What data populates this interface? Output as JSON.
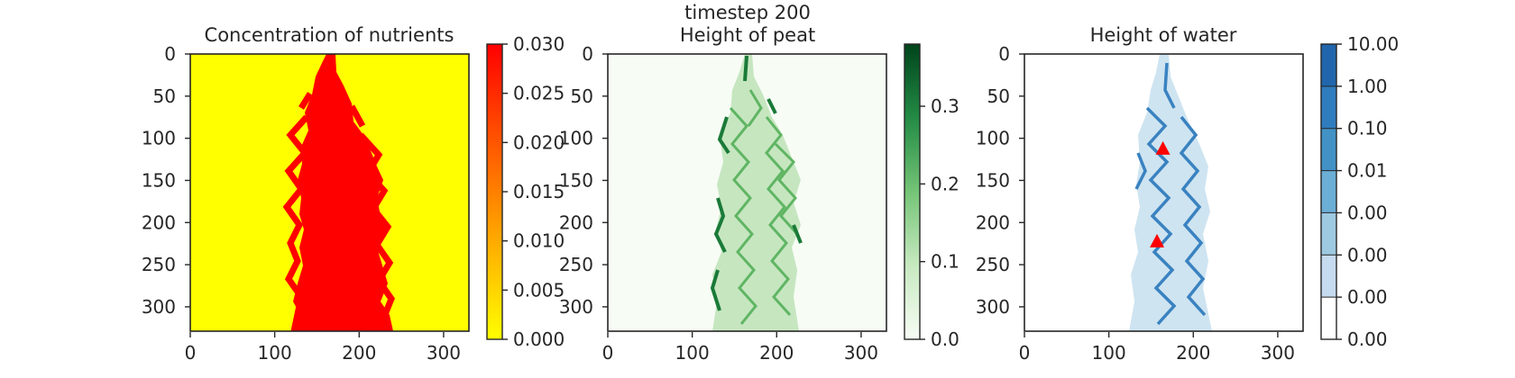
{
  "suptitle": "timestep 200",
  "colors": {
    "axis": "#262626",
    "background": "#ffffff",
    "marker": "#ff0000",
    "nutrient_low": "#ffff00",
    "nutrient_high": "#ff0000"
  },
  "chart_data": [
    {
      "type": "heatmap",
      "title": "Concentration of nutrients",
      "xlabel": "",
      "ylabel": "",
      "xlim": [
        0,
        330
      ],
      "ylim": [
        330,
        0
      ],
      "xticks": [
        "0",
        "100",
        "200",
        "300"
      ],
      "yticks": [
        "0",
        "50",
        "100",
        "150",
        "200",
        "250",
        "300"
      ],
      "colormap": "autumn_r",
      "colorbar": {
        "range": [
          0,
          0.03
        ],
        "ticks": [
          "0.000",
          "0.005",
          "0.010",
          "0.015",
          "0.020",
          "0.025",
          "0.030"
        ]
      },
      "description_values": {
        "background_value": 0,
        "channel_value": 0.03,
        "channel_x_range_at_top": [
          160,
          175
        ],
        "channel_x_range_at_bottom": [
          125,
          235
        ]
      }
    },
    {
      "type": "heatmap",
      "title": "Height of peat",
      "xlabel": "",
      "ylabel": "",
      "xlim": [
        0,
        330
      ],
      "ylim": [
        330,
        0
      ],
      "xticks": [
        "0",
        "100",
        "200",
        "300"
      ],
      "yticks": [
        "0",
        "50",
        "100",
        "150",
        "200",
        "250",
        "300"
      ],
      "colormap": "Greens",
      "colorbar": {
        "range": [
          0,
          0.38
        ],
        "ticks": [
          "0.0",
          "0.1",
          "0.2",
          "0.3"
        ]
      }
    },
    {
      "type": "heatmap",
      "title": "Height of water",
      "xlabel": "",
      "ylabel": "",
      "xlim": [
        0,
        330
      ],
      "ylim": [
        330,
        0
      ],
      "xticks": [
        "0",
        "100",
        "200",
        "300"
      ],
      "yticks": [
        "0",
        "50",
        "100",
        "150",
        "200",
        "250",
        "300"
      ],
      "colormap": "Blues",
      "colorbar": {
        "discrete": true,
        "ticks": [
          "0.00",
          "0.00",
          "0.00",
          "0.00",
          "0.01",
          "0.10",
          "1.00",
          "10.00"
        ]
      },
      "markers": [
        {
          "x": 164,
          "y": 112
        },
        {
          "x": 157,
          "y": 222
        }
      ]
    }
  ]
}
